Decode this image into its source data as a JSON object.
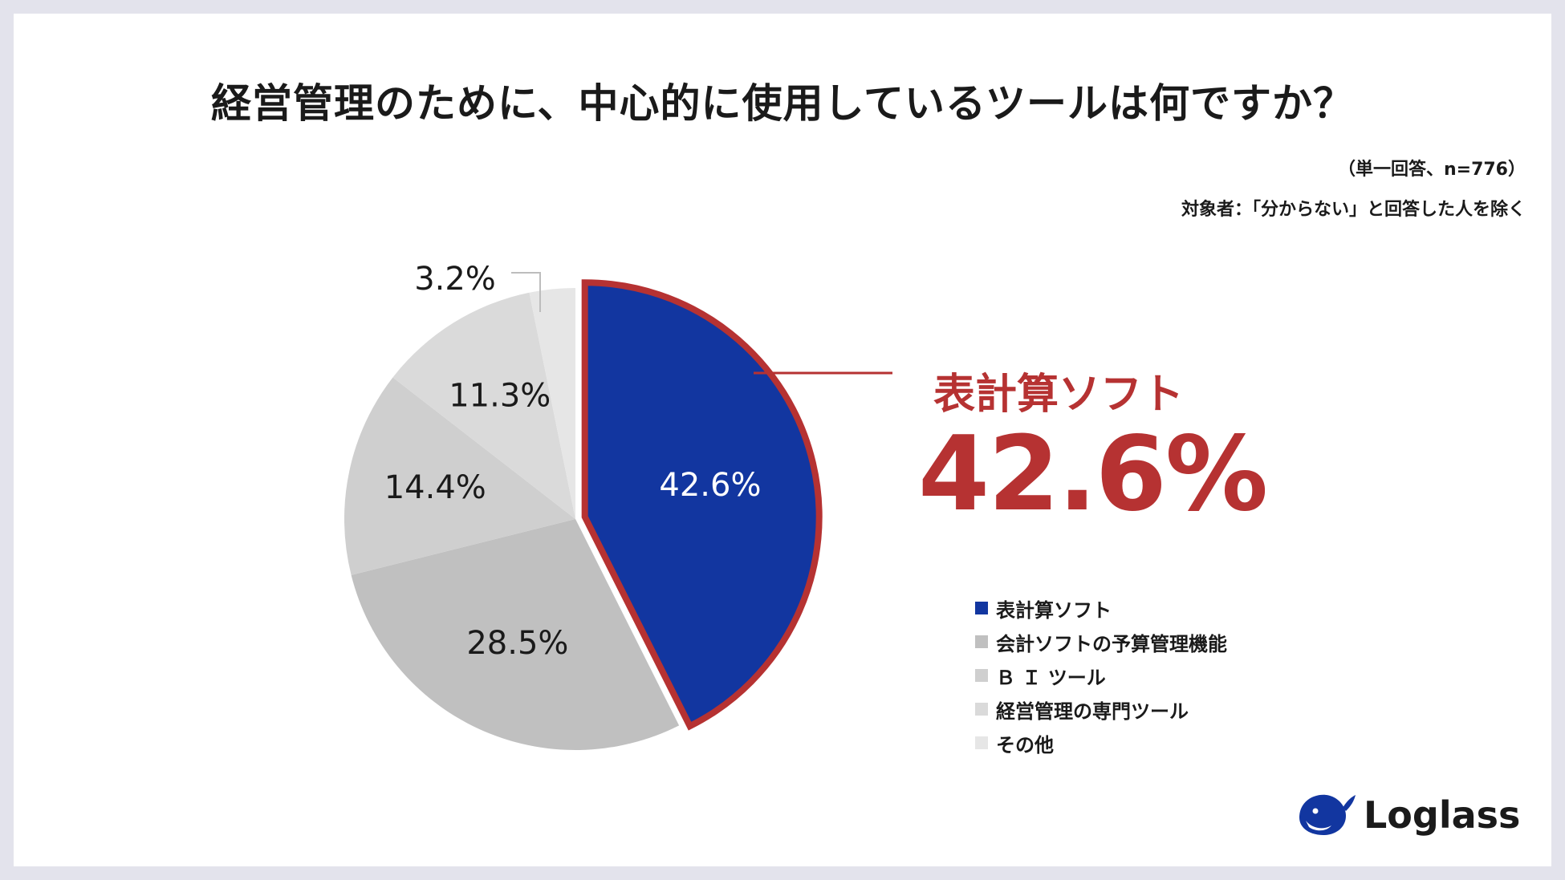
{
  "header": {
    "title": "経営管理のために、中心的に使用しているツールは何ですか？",
    "note_sample": "（単一回答、n=776）",
    "note_target": "対象者：「分からない」と回答した人を除く"
  },
  "callout": {
    "label": "表計算ソフト",
    "value": "42.6%"
  },
  "chart_data": {
    "type": "pie",
    "start_angle_deg": 0,
    "direction": "clockwise",
    "highlight_index": 0,
    "highlight_stroke": "#b63232",
    "slices": [
      {
        "label": "表計算ソフト",
        "value": 42.6,
        "display": "42.6%",
        "color": "#1236a0",
        "text_color": "#ffffff"
      },
      {
        "label": "会計ソフトの予算管理機能",
        "value": 28.5,
        "display": "28.5%",
        "color": "#c0c0c0",
        "text_color": "#1a1a1a"
      },
      {
        "label": "ＢＩツール",
        "value": 14.4,
        "display": "14.4%",
        "color": "#cfcfcf",
        "text_color": "#1a1a1a"
      },
      {
        "label": "経営管理の専門ツール",
        "value": 11.3,
        "display": "11.3%",
        "color": "#dadada",
        "text_color": "#1a1a1a"
      },
      {
        "label": "その他",
        "value": 3.2,
        "display": "3.2%",
        "color": "#e6e6e6",
        "text_color": "#1a1a1a"
      }
    ]
  },
  "legend": {
    "items": [
      {
        "label": "表計算ソフト",
        "color": "#1236a0"
      },
      {
        "label": "会計ソフトの予算管理機能",
        "color": "#c0c0c0"
      },
      {
        "label": "Ｂ Ｉ ツール",
        "color": "#cfcfcf"
      },
      {
        "label": "経営管理の専門ツール",
        "color": "#dadada"
      },
      {
        "label": "その他",
        "color": "#e6e6e6"
      }
    ]
  },
  "brand": {
    "name": "Loglass",
    "logo_icon": "whale-icon",
    "color": "#1236a0"
  }
}
